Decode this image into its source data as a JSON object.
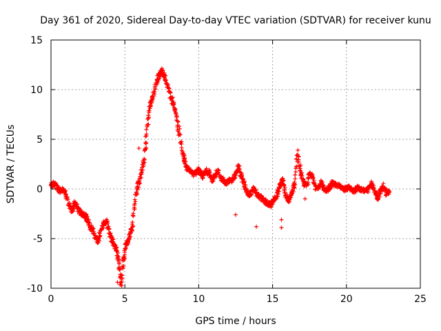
{
  "chart_data": {
    "type": "scatter",
    "title": "Day 361 of 2020, Sidereal Day-to-day VTEC variation (SDTVAR) for receiver kunu",
    "xlabel": "GPS time / hours",
    "ylabel": "SDTVAR / TECUs",
    "xlim": [
      0,
      25
    ],
    "ylim": [
      -10,
      15
    ],
    "xticks": [
      "0",
      "5",
      "10",
      "15",
      "20",
      "25"
    ],
    "yticks": [
      "-10",
      "-5",
      "0",
      "5",
      "10",
      "15"
    ],
    "grid": true,
    "marker": "+",
    "color": "#ff0000",
    "series": [
      {
        "name": "SDTVAR",
        "anchors": [
          [
            0.0,
            0.3
          ],
          [
            0.2,
            0.6
          ],
          [
            0.4,
            0.2
          ],
          [
            0.6,
            -0.2
          ],
          [
            0.8,
            -0.1
          ],
          [
            1.0,
            -0.4
          ],
          [
            1.2,
            -1.6
          ],
          [
            1.4,
            -2.2
          ],
          [
            1.6,
            -1.5
          ],
          [
            1.8,
            -1.8
          ],
          [
            2.0,
            -2.4
          ],
          [
            2.2,
            -2.6
          ],
          [
            2.4,
            -2.9
          ],
          [
            2.6,
            -3.6
          ],
          [
            2.8,
            -4.1
          ],
          [
            3.0,
            -4.9
          ],
          [
            3.2,
            -5.2
          ],
          [
            3.4,
            -4.0
          ],
          [
            3.6,
            -3.4
          ],
          [
            3.8,
            -3.4
          ],
          [
            4.0,
            -4.6
          ],
          [
            4.2,
            -5.4
          ],
          [
            4.4,
            -6.0
          ],
          [
            4.6,
            -7.4
          ],
          [
            4.75,
            -9.8
          ],
          [
            4.9,
            -7.0
          ],
          [
            5.1,
            -5.6
          ],
          [
            5.3,
            -5.0
          ],
          [
            5.5,
            -3.6
          ],
          [
            5.7,
            -1.0
          ],
          [
            5.9,
            0.4
          ],
          [
            6.1,
            1.6
          ],
          [
            6.3,
            3.0
          ],
          [
            6.5,
            6.0
          ],
          [
            6.7,
            8.5
          ],
          [
            6.9,
            9.4
          ],
          [
            7.1,
            10.5
          ],
          [
            7.3,
            11.3
          ],
          [
            7.5,
            11.9
          ],
          [
            7.7,
            11.2
          ],
          [
            7.9,
            10.3
          ],
          [
            8.1,
            9.4
          ],
          [
            8.3,
            8.4
          ],
          [
            8.5,
            7.1
          ],
          [
            8.7,
            5.4
          ],
          [
            8.9,
            3.6
          ],
          [
            9.1,
            2.5
          ],
          [
            9.3,
            1.9
          ],
          [
            9.5,
            1.8
          ],
          [
            9.7,
            1.5
          ],
          [
            9.9,
            2.0
          ],
          [
            10.1,
            1.6
          ],
          [
            10.3,
            1.3
          ],
          [
            10.5,
            1.8
          ],
          [
            10.7,
            1.6
          ],
          [
            10.9,
            0.9
          ],
          [
            11.1,
            1.4
          ],
          [
            11.3,
            1.9
          ],
          [
            11.5,
            1.1
          ],
          [
            11.7,
            0.9
          ],
          [
            11.9,
            0.6
          ],
          [
            12.1,
            1.0
          ],
          [
            12.3,
            0.9
          ],
          [
            12.5,
            1.5
          ],
          [
            12.7,
            2.3
          ],
          [
            12.9,
            1.2
          ],
          [
            13.1,
            0.3
          ],
          [
            13.3,
            -0.4
          ],
          [
            13.5,
            -0.6
          ],
          [
            13.7,
            0.1
          ],
          [
            13.9,
            -0.4
          ],
          [
            14.1,
            -0.8
          ],
          [
            14.3,
            -1.0
          ],
          [
            14.5,
            -1.3
          ],
          [
            14.7,
            -1.5
          ],
          [
            14.9,
            -1.6
          ],
          [
            15.1,
            -1.1
          ],
          [
            15.3,
            -0.6
          ],
          [
            15.5,
            0.4
          ],
          [
            15.7,
            0.9
          ],
          [
            15.9,
            -0.6
          ],
          [
            16.1,
            -1.2
          ],
          [
            16.3,
            -0.4
          ],
          [
            16.5,
            0.6
          ],
          [
            16.7,
            3.6
          ],
          [
            16.9,
            1.6
          ],
          [
            17.1,
            0.6
          ],
          [
            17.3,
            0.3
          ],
          [
            17.5,
            1.6
          ],
          [
            17.7,
            1.2
          ],
          [
            17.9,
            0.1
          ],
          [
            18.1,
            0.2
          ],
          [
            18.3,
            0.6
          ],
          [
            18.5,
            -0.1
          ],
          [
            18.7,
            -0.1
          ],
          [
            18.9,
            0.2
          ],
          [
            19.1,
            0.6
          ],
          [
            19.3,
            0.4
          ],
          [
            19.5,
            0.3
          ],
          [
            19.7,
            0.1
          ],
          [
            19.9,
            0.0
          ],
          [
            20.1,
            0.1
          ],
          [
            20.3,
            0.0
          ],
          [
            20.5,
            -0.2
          ],
          [
            20.7,
            0.1
          ],
          [
            20.9,
            0.0
          ],
          [
            21.1,
            -0.1
          ],
          [
            21.3,
            -0.2
          ],
          [
            21.5,
            0.0
          ],
          [
            21.7,
            0.5
          ],
          [
            21.9,
            -0.1
          ],
          [
            22.1,
            -1.0
          ],
          [
            22.3,
            -0.2
          ],
          [
            22.5,
            0.2
          ],
          [
            22.7,
            -0.4
          ],
          [
            22.9,
            -0.3
          ]
        ],
        "outliers": [
          [
            4.5,
            -9.4
          ],
          [
            4.7,
            -8.8
          ],
          [
            12.5,
            -2.6
          ],
          [
            13.9,
            -3.8
          ],
          [
            15.6,
            -3.9
          ],
          [
            15.6,
            -3.1
          ],
          [
            17.2,
            -1.0
          ],
          [
            16.6,
            3.0
          ],
          [
            16.9,
            2.4
          ],
          [
            6.4,
            4.0
          ],
          [
            5.95,
            4.1
          ]
        ]
      }
    ]
  }
}
